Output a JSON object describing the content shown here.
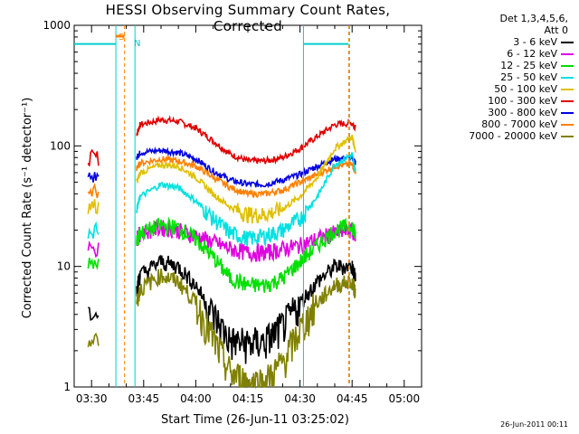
{
  "title": "HESSI Observing Summary Count Rates, Corrected",
  "xlabel": "Start Time (26-Jun-11 03:25:02)",
  "ylabel": "Corrected Count Rate (s⁻¹ detector⁻¹)",
  "footer_timestamp": "26-Jun-2011 00:11",
  "legend": {
    "header1": "Det 1,3,4,5,6,",
    "header2": "Att 0",
    "entries": [
      {
        "label": "3 - 6 keV",
        "color": "#000000"
      },
      {
        "label": "6 - 12 keV",
        "color": "#e000e0"
      },
      {
        "label": "12 - 25 keV",
        "color": "#00e000"
      },
      {
        "label": "25 - 50 keV",
        "color": "#00e0e0"
      },
      {
        "label": "50 - 100 keV",
        "color": "#e0c000"
      },
      {
        "label": "100 - 300 keV",
        "color": "#e00000"
      },
      {
        "label": "300 - 800 keV",
        "color": "#0000e0"
      },
      {
        "label": "800 - 7000 keV",
        "color": "#ff8000"
      },
      {
        "label": "7000 - 20000 keV",
        "color": "#808000"
      }
    ]
  },
  "flags": {
    "s_label": "S",
    "n_label": "N"
  },
  "chart_data": {
    "type": "line",
    "yscale": "log",
    "xlim": [
      "03:25",
      "05:05"
    ],
    "ylim": [
      1,
      1000
    ],
    "xticks": [
      "03:30",
      "03:45",
      "04:00",
      "04:15",
      "04:30",
      "04:45",
      "05:00"
    ],
    "yticks": [
      "1",
      "10",
      "100",
      "1000"
    ],
    "x_minutes_from_0330": [
      -1,
      0,
      5,
      10,
      13,
      14,
      20,
      25,
      30,
      35,
      40,
      45,
      50,
      55,
      60,
      65,
      70,
      75,
      76,
      77
    ],
    "series": [
      {
        "name": "100 - 300 keV",
        "color": "#e00000",
        "values": [
          null,
          null,
          null,
          null,
          125,
          150,
          165,
          160,
          140,
          110,
          85,
          75,
          75,
          80,
          95,
          120,
          150,
          155,
          140,
          null
        ]
      },
      {
        "name": "300 - 800 keV",
        "color": "#0000e0",
        "values": [
          null,
          null,
          null,
          null,
          80,
          88,
          92,
          88,
          78,
          62,
          52,
          48,
          48,
          52,
          58,
          68,
          78,
          80,
          72,
          null
        ]
      },
      {
        "name": "800 - 7000 keV",
        "color": "#ff8000",
        "values": [
          null,
          null,
          null,
          null,
          65,
          72,
          78,
          75,
          68,
          55,
          45,
          40,
          40,
          43,
          50,
          58,
          68,
          70,
          62,
          null
        ]
      },
      {
        "name": "50 - 100 keV",
        "color": "#e0c000",
        "values": [
          null,
          null,
          null,
          null,
          50,
          60,
          70,
          68,
          55,
          40,
          31,
          27,
          27,
          30,
          38,
          55,
          95,
          120,
          90,
          null
        ]
      },
      {
        "name": "25 - 50 keV",
        "color": "#00e0e0",
        "values": [
          null,
          null,
          null,
          null,
          30,
          38,
          48,
          45,
          35,
          25,
          19,
          17,
          18,
          20,
          25,
          38,
          70,
          85,
          60,
          null
        ]
      },
      {
        "name": "6 - 12 keV",
        "color": "#e000e0",
        "values": [
          null,
          null,
          null,
          null,
          17,
          19,
          21,
          20,
          18,
          16,
          14,
          13,
          13,
          14,
          15,
          17,
          19,
          20,
          18,
          null
        ]
      },
      {
        "name": "12 - 25 keV",
        "color": "#00e000",
        "values": [
          null,
          null,
          null,
          null,
          16,
          19,
          22,
          21,
          17,
          12,
          8,
          7,
          7,
          8,
          11,
          15,
          20,
          22,
          18,
          null
        ]
      },
      {
        "name": "3 - 6 keV",
        "color": "#000000",
        "values": [
          null,
          null,
          null,
          null,
          6.5,
          8.5,
          11,
          10,
          7,
          4,
          2.4,
          2.3,
          2.4,
          3.2,
          5,
          7.5,
          10,
          10,
          8,
          null
        ]
      },
      {
        "name": "7000 - 20000 keV",
        "color": "#808000",
        "values": [
          null,
          null,
          null,
          null,
          5,
          6.5,
          8.5,
          7.5,
          5,
          2.5,
          1.3,
          1.1,
          1.1,
          1.6,
          3,
          5,
          7,
          7.5,
          6,
          null
        ]
      }
    ],
    "early_segment_x_minutes": [
      -1,
      2
    ],
    "early_segment_values": {
      "100 - 300 keV": 80,
      "300 - 800 keV": 55,
      "800 - 7000 keV": 42,
      "50 - 100 keV": 32,
      "25 - 50 keV": 20,
      "6 - 12 keV": 14,
      "12 - 25 keV": 11,
      "3 - 6 keV": 4,
      "7000 - 20000 keV": 2.5
    },
    "saa_line_value": 700,
    "saa_intervals_minutes": [
      [
        -10,
        7
      ],
      [
        61,
        74
      ]
    ],
    "markers_minutes": {
      "cyan_solid": [
        7,
        12.5,
        61
      ],
      "orange_dashed": [
        9.5,
        74
      ],
      "cyan_dashed": [
        74
      ]
    },
    "grid": false
  }
}
